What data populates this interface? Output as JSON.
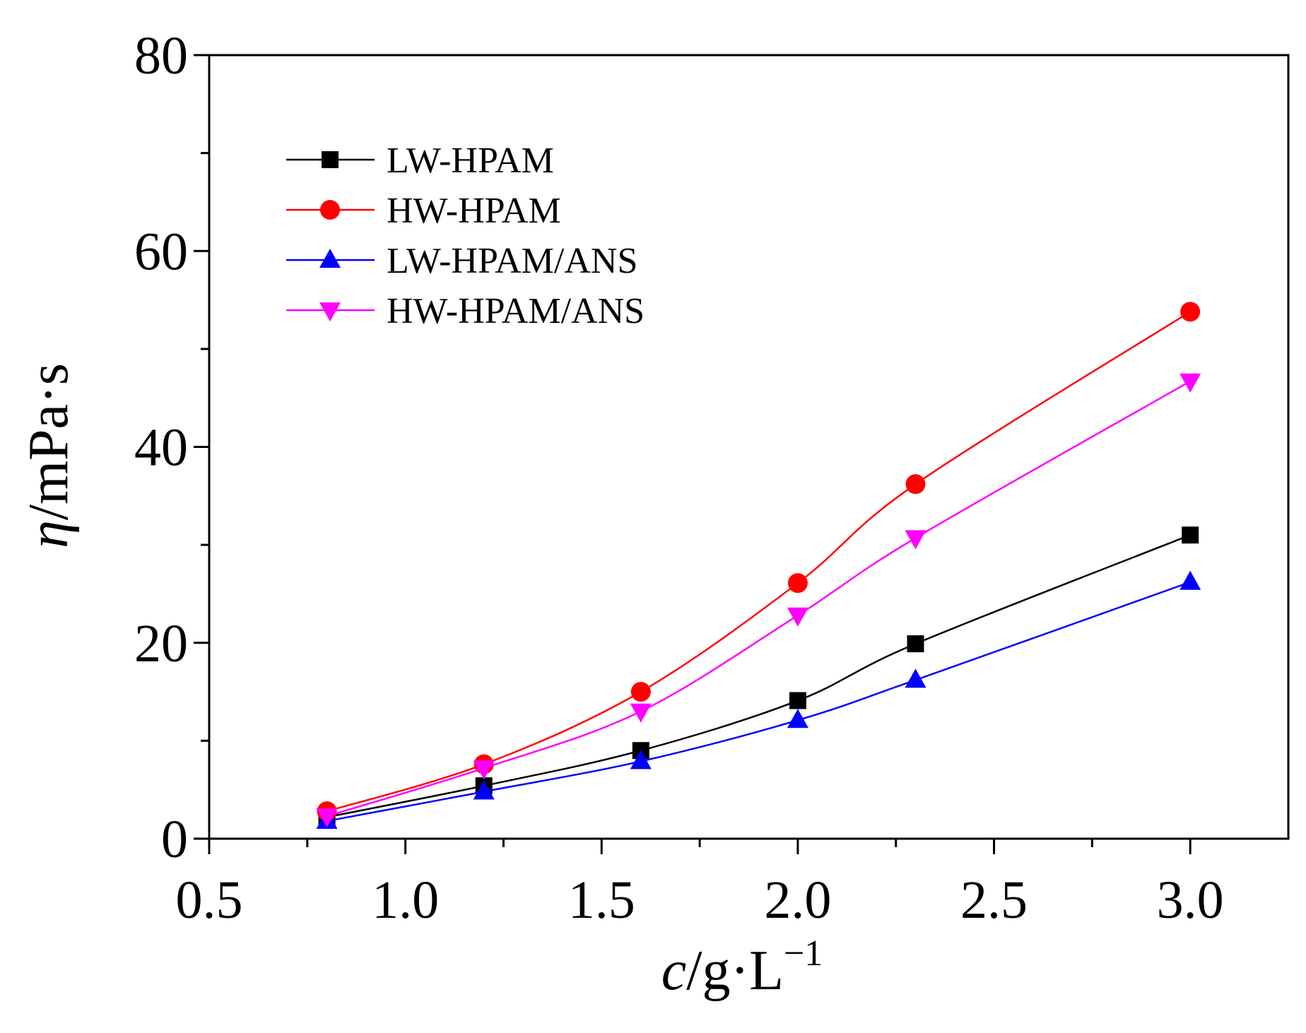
{
  "chart_data": {
    "type": "line",
    "xlabel": {
      "var": "c",
      "unit": "/g·L",
      "sup": "−1"
    },
    "ylabel": {
      "var": "η",
      "unit": "/mPa·s"
    },
    "xlim": [
      0.5,
      3.25
    ],
    "ylim": [
      0,
      80
    ],
    "xticks": [
      "0.5",
      "1.0",
      "1.5",
      "2.0",
      "2.5",
      "3.0"
    ],
    "yticks": [
      "0",
      "20",
      "40",
      "60",
      "80"
    ],
    "grid": false,
    "legend_position": "top-left",
    "x": [
      0.8,
      1.2,
      1.6,
      2.0,
      2.3,
      3.0
    ],
    "series": [
      {
        "name": "LW-HPAM",
        "color": "#000000",
        "marker": "square",
        "values": [
          2.2,
          5.4,
          9.0,
          14.1,
          19.9,
          31.0
        ]
      },
      {
        "name": "HW-HPAM",
        "color": "#ff0000",
        "marker": "circle",
        "values": [
          2.8,
          7.6,
          15.0,
          26.1,
          36.2,
          53.8
        ]
      },
      {
        "name": "LW-HPAM/ANS",
        "color": "#0000ff",
        "marker": "triangle-up",
        "values": [
          1.8,
          4.8,
          7.9,
          12.1,
          16.2,
          26.2
        ]
      },
      {
        "name": "HW-HPAM/ANS",
        "color": "#ff00ff",
        "marker": "triangle-down",
        "values": [
          2.3,
          7.2,
          13.0,
          22.8,
          30.7,
          46.7
        ]
      }
    ]
  }
}
